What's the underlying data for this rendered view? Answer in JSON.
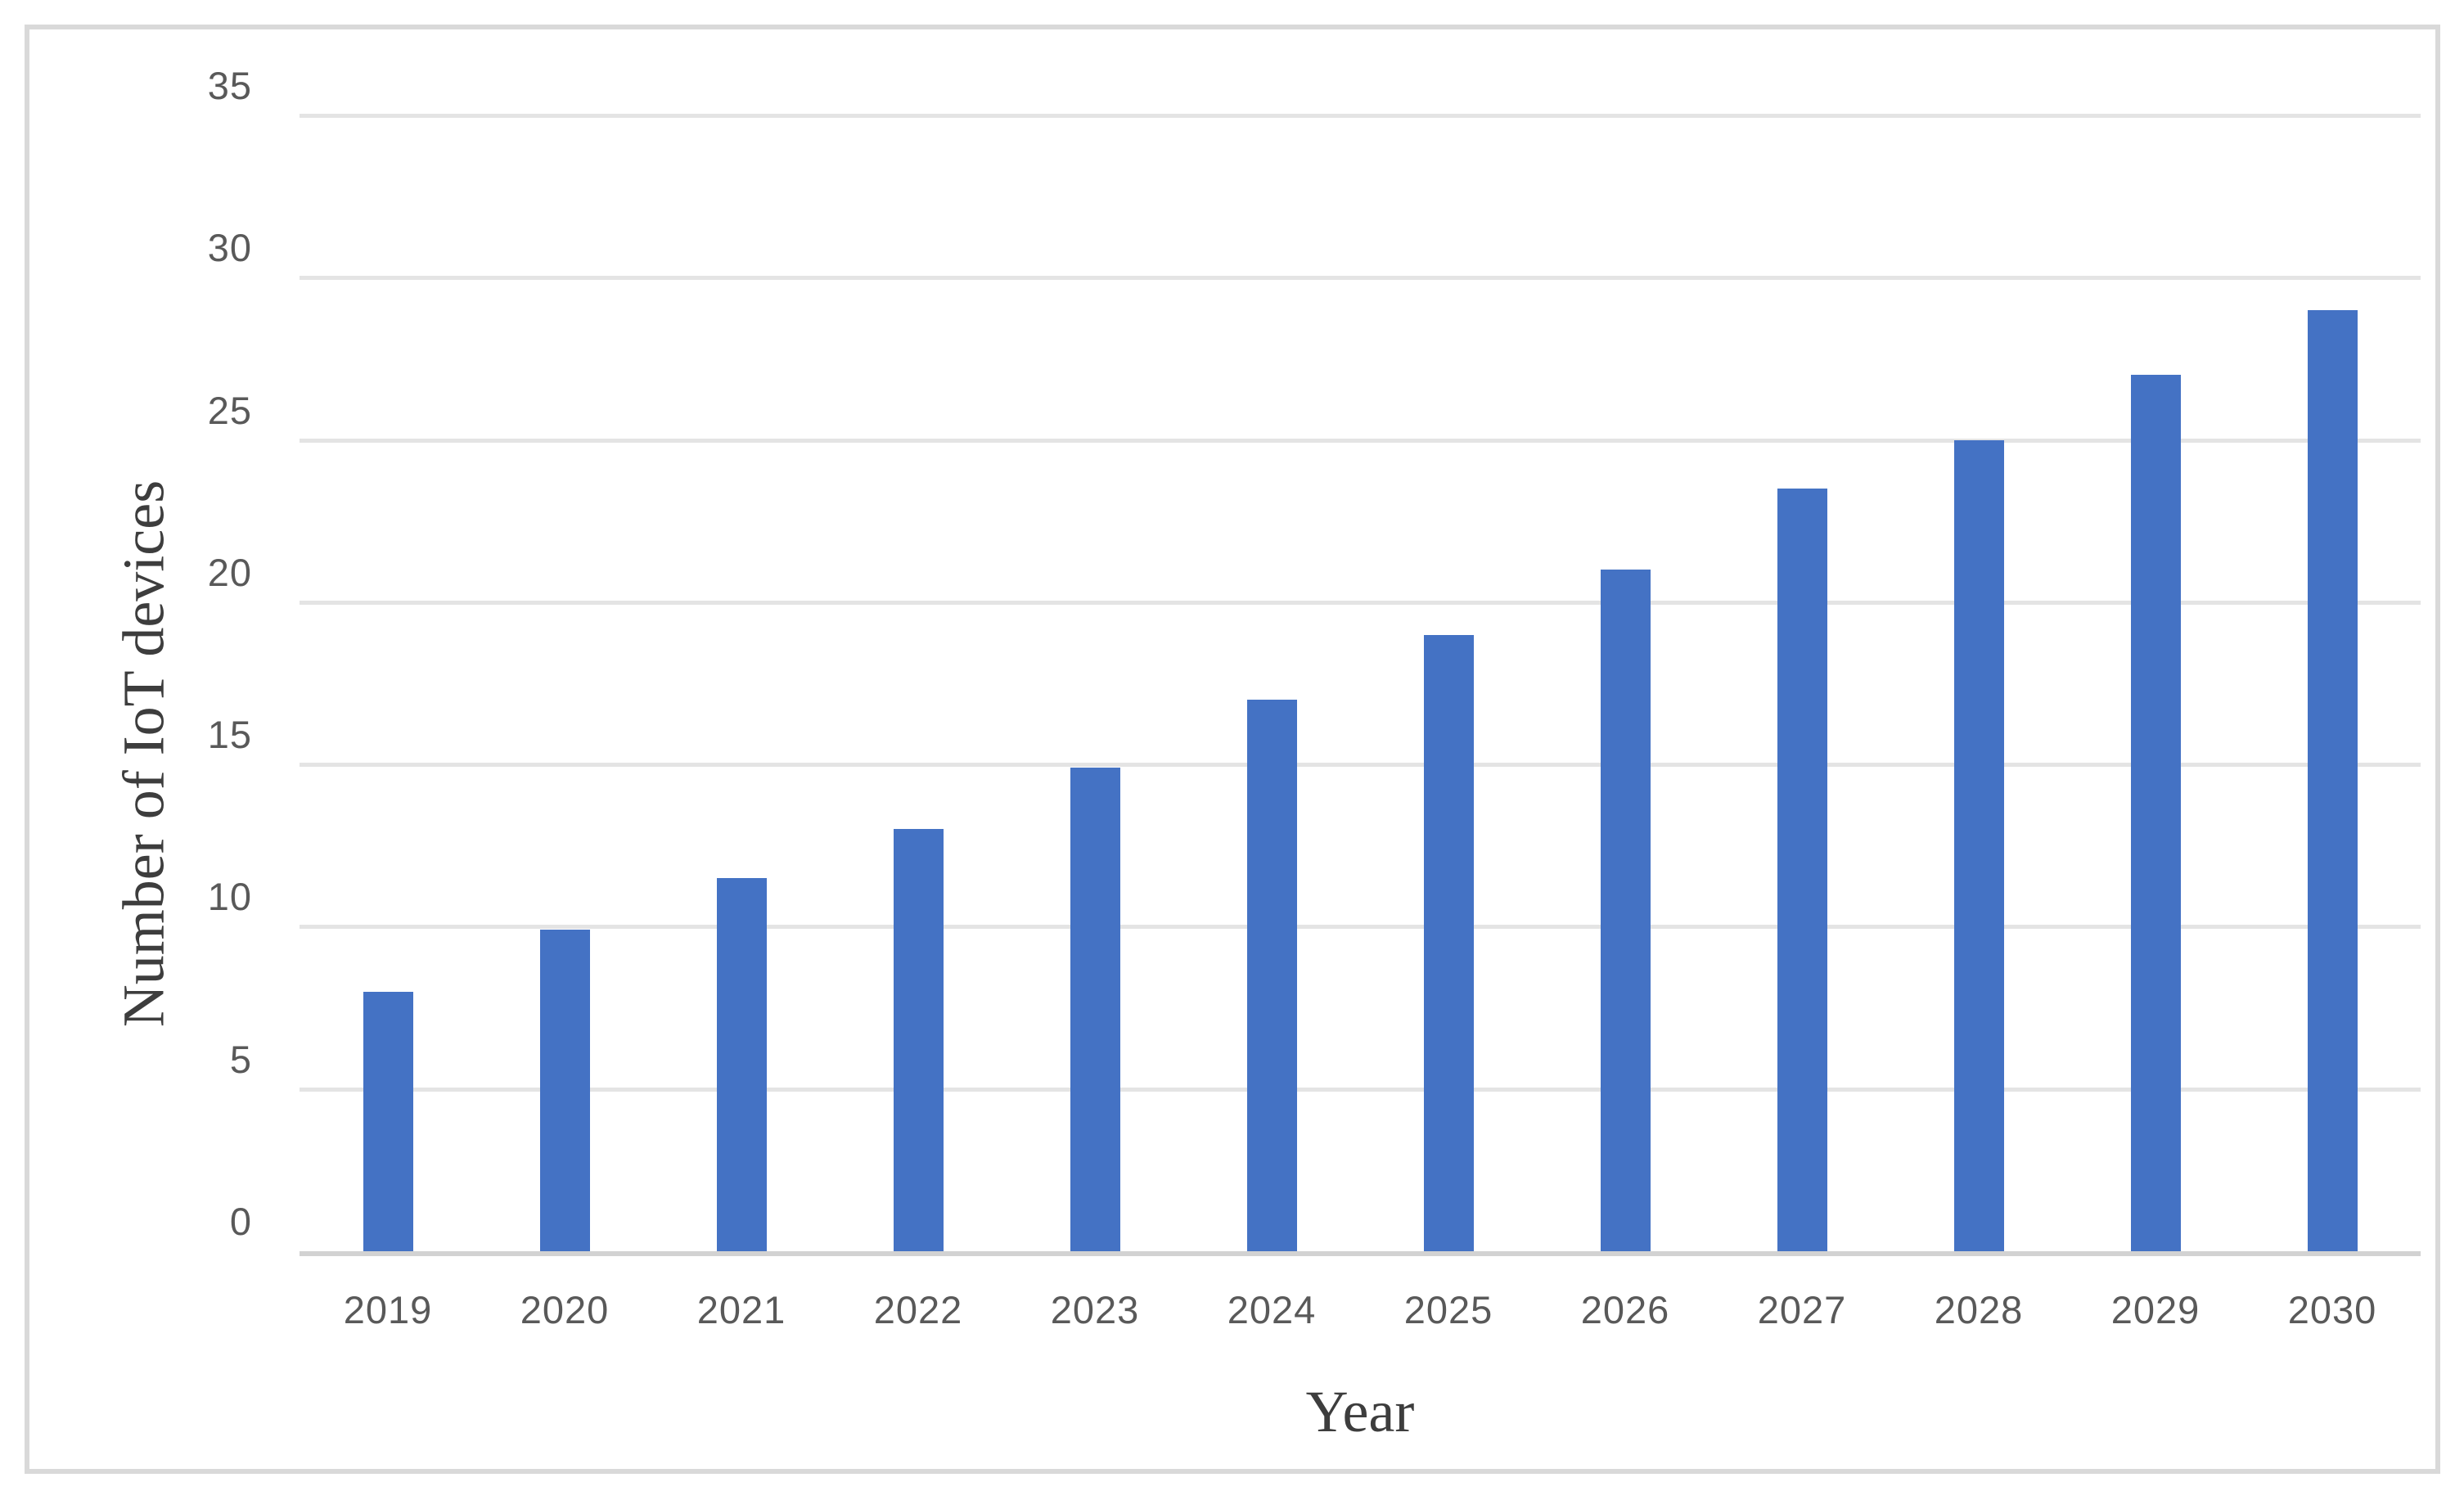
{
  "chart_data": {
    "type": "bar",
    "title": "",
    "categories": [
      "2019",
      "2020",
      "2021",
      "2022",
      "2023",
      "2024",
      "2025",
      "2026",
      "2027",
      "2028",
      "2029",
      "2030"
    ],
    "values": [
      8,
      9.9,
      11.5,
      13,
      14.9,
      17,
      19,
      21,
      23.5,
      25,
      27,
      29
    ],
    "xlabel": "Year",
    "ylabel": "Number of IoT devices",
    "ylim": [
      0,
      35
    ],
    "yticks": [
      0,
      5,
      10,
      15,
      20,
      25,
      30,
      35
    ],
    "grid": true,
    "legend": false,
    "bar_color": "#4472C4",
    "gridline_color": "#e4e4e4",
    "axis_line_color": "#d2d2d2",
    "tick_label_color": "#595959",
    "axis_title_color": "#3d3d3d",
    "frame_border_color": "#d9d9d9"
  }
}
